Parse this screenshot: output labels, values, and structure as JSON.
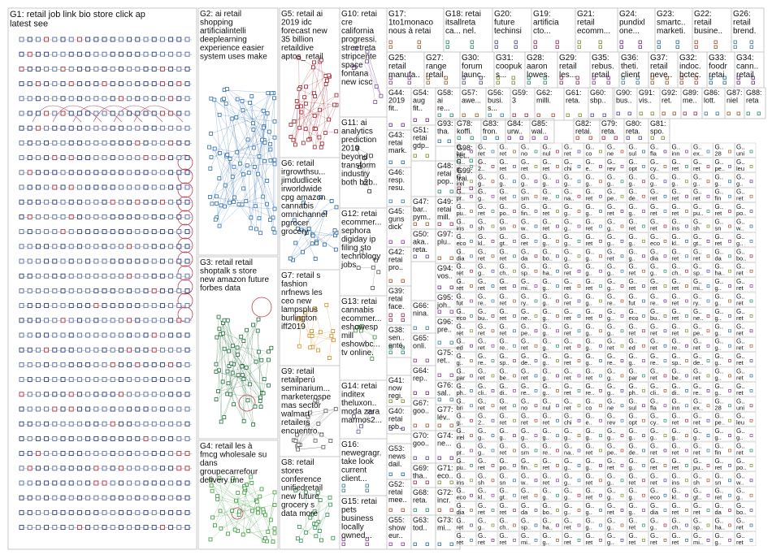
{
  "groups": [
    {
      "id": "G1",
      "lines": [
        "G1: retail job link bio store click apply hiring",
        "latest see"
      ]
    },
    {
      "id": "G2",
      "lines": [
        "G2: ai retail",
        "shopping",
        "artificialintelligence",
        "deeplearning",
        "experience easier",
        "system uses make"
      ]
    },
    {
      "id": "G3",
      "lines": [
        "G3: retail retailwire",
        "shoptalk s store",
        "new amazon future",
        "forbes data"
      ]
    },
    {
      "id": "G4",
      "lines": [
        "G4: retail les à",
        "fmcg wholesale sur",
        "dans",
        "groupecarrefour",
        "delivery une"
      ]
    },
    {
      "id": "G5",
      "lines": [
        "G5: retail ai",
        "2019 idc",
        "forecast new",
        "35 billion",
        "retaildive",
        "aptos_retail"
      ]
    },
    {
      "id": "G6",
      "lines": [
        "G6: retail",
        "irgrowthsu...",
        "jimdudlicek",
        "irworldwide",
        "cpg amazon",
        "cannabis",
        "omnichannel",
        "pgrocer",
        "grocery"
      ]
    },
    {
      "id": "G7",
      "lines": [
        "G7: retail s",
        "fashion",
        "nrfnews les",
        "ceo new",
        "lampsplus",
        "burlington",
        "iff2019"
      ]
    },
    {
      "id": "G8",
      "lines": [
        "G8: retail",
        "stores",
        "conference",
        "unifiedretaili...",
        "new future",
        "grocery s",
        "data more"
      ]
    },
    {
      "id": "G9",
      "lines": [
        "G9: retail",
        "retailperú",
        "seminarium...",
        "marketerospe",
        "mas sector",
        "walmart",
        "retailers",
        "encuentro..."
      ]
    },
    {
      "id": "G10",
      "lines": [
        "G10: retail",
        "cre",
        "california",
        "progressi...",
        "streetretail",
        "stripcenter",
        "space",
        "fontana",
        "new icsc"
      ]
    },
    {
      "id": "G11",
      "lines": [
        "G11: ai",
        "analytics",
        "prediction",
        "2019",
        "beyond",
        "transform",
        "industry",
        "both b2b..."
      ]
    },
    {
      "id": "G12",
      "lines": [
        "G12: retail",
        "ecommer...",
        "sephora",
        "digiday ipo",
        "filing store",
        "technology",
        "jobs"
      ]
    },
    {
      "id": "G13",
      "lines": [
        "G13: retail",
        "cannabis",
        "ecommer...",
        "eshowesp",
        "mill",
        "eshowbc...",
        "tv online..."
      ]
    },
    {
      "id": "G14",
      "lines": [
        "G14: retail",
        "inditex",
        "theluxon...",
        "moda zara",
        "marmos2..."
      ]
    },
    {
      "id": "G15",
      "lines": [
        "G15: retail",
        "pets",
        "business",
        "locally",
        "owned..."
      ]
    },
    {
      "id": "G16",
      "lines": [
        "G16:",
        "newegragr...",
        "take look",
        "current",
        "client..."
      ]
    },
    {
      "id": "G17",
      "lines": [
        "G17:",
        "1to1monaco",
        "nous à retail..."
      ]
    },
    {
      "id": "G18",
      "lines": [
        "G18: retail",
        "itsallretail",
        "ca... nel..."
      ]
    },
    {
      "id": "G19",
      "lines": [
        "G19:",
        "artificial ai",
        "cto..."
      ]
    },
    {
      "id": "G20",
      "lines": [
        "G20:",
        "future",
        "techinsi..."
      ]
    },
    {
      "id": "G21",
      "lines": [
        "G21:",
        "retail",
        "ecomm..."
      ]
    },
    {
      "id": "G22",
      "lines": [
        "G22:",
        "retail",
        "busine..."
      ]
    },
    {
      "id": "G23",
      "lines": [
        "G23:",
        "smartc...",
        "marketi..."
      ]
    },
    {
      "id": "G24",
      "lines": [
        "G24:",
        "pundixl",
        "one..."
      ]
    },
    {
      "id": "G25",
      "lines": [
        "G25:",
        "retail",
        "manufa..."
      ]
    },
    {
      "id": "G26",
      "lines": [
        "G26:",
        "retail",
        "brend..."
      ]
    },
    {
      "id": "G27",
      "lines": [
        "G27:",
        "range",
        "retail..."
      ]
    },
    {
      "id": "G28",
      "lines": [
        "G28:",
        "aaron",
        "lowes..."
      ]
    },
    {
      "id": "G29",
      "lines": [
        "G29:",
        "retail",
        "les..."
      ]
    },
    {
      "id": "G30",
      "lines": [
        "G30:",
        "forum",
        "launc..."
      ]
    },
    {
      "id": "G31",
      "lines": [
        "G31:",
        "coopuka",
        "s..."
      ]
    },
    {
      "id": "G32",
      "lines": [
        "G32:",
        "indoc...",
        "bctec..."
      ]
    },
    {
      "id": "G33",
      "lines": [
        "G33:",
        "foodr...",
        "retail..."
      ]
    },
    {
      "id": "G34",
      "lines": [
        "G34:",
        "cann...",
        "retail..."
      ]
    },
    {
      "id": "G35",
      "lines": [
        "G35:",
        "rebus...",
        "retail..."
      ]
    },
    {
      "id": "G36",
      "lines": [
        "G36:",
        "theti...",
        "client..."
      ]
    },
    {
      "id": "G37",
      "lines": [
        "G37:",
        "retail",
        "neve..."
      ]
    },
    {
      "id": "G38",
      "lines": [
        "G38:",
        "sen...",
        "enté..."
      ]
    },
    {
      "id": "G39",
      "lines": [
        "G39:",
        "retail",
        "face..."
      ]
    },
    {
      "id": "G40",
      "lines": [
        "G40:",
        "retail",
        "rob..."
      ]
    },
    {
      "id": "G41",
      "lines": [
        "G41:",
        "now",
        "regi..."
      ]
    },
    {
      "id": "G42",
      "lines": [
        "G42:",
        "retail",
        "pro..."
      ]
    },
    {
      "id": "G43",
      "lines": [
        "G43:",
        "retail",
        "mark..."
      ]
    },
    {
      "id": "G44",
      "lines": [
        "G44:",
        "2019",
        "fit..."
      ]
    },
    {
      "id": "G45",
      "lines": [
        "G45:",
        "guns",
        "dick'..."
      ]
    },
    {
      "id": "G46",
      "lines": [
        "G46:",
        "resp...",
        "resu..."
      ]
    },
    {
      "id": "G47",
      "lines": [
        "G47:",
        "bar...",
        "pym..."
      ]
    },
    {
      "id": "G48",
      "lines": [
        "G48:",
        "retail",
        "pop..."
      ]
    },
    {
      "id": "G49",
      "lines": [
        "G49:",
        "retail",
        "mill..."
      ]
    },
    {
      "id": "G50",
      "lines": [
        "G50:",
        "aka...",
        "reta..."
      ]
    },
    {
      "id": "G51",
      "lines": [
        "G51:",
        "retail",
        "gdp..."
      ]
    },
    {
      "id": "G52",
      "lines": [
        "G52:",
        "retail",
        "mee..."
      ]
    },
    {
      "id": "G53",
      "lines": [
        "G53:",
        "news",
        "dail..."
      ]
    },
    {
      "id": "G54",
      "lines": [
        "G54:",
        "aug",
        "fit..."
      ]
    },
    {
      "id": "G55",
      "lines": [
        "G55:",
        "show",
        "eur..."
      ]
    },
    {
      "id": "G56",
      "lines": [
        "G56:",
        "busi...",
        "s..."
      ]
    },
    {
      "id": "G57",
      "lines": [
        "G57:",
        "awe..."
      ]
    },
    {
      "id": "G58",
      "lines": [
        "G58:",
        "ai",
        "re..."
      ]
    },
    {
      "id": "G59",
      "lines": [
        "G59:",
        "3"
      ]
    },
    {
      "id": "G60",
      "lines": [
        "G60:",
        "sbp..."
      ]
    },
    {
      "id": "G61",
      "lines": [
        "G61:",
        "reta..."
      ]
    },
    {
      "id": "G62",
      "lines": [
        "G62:",
        "milli..."
      ]
    },
    {
      "id": "G63",
      "lines": [
        "G63:",
        "tod..."
      ]
    },
    {
      "id": "G64",
      "lines": [
        "G64:",
        "rep..."
      ]
    },
    {
      "id": "G65",
      "lines": [
        "G65:",
        "onli..."
      ]
    },
    {
      "id": "G66",
      "lines": [
        "G66:",
        "nina..."
      ]
    },
    {
      "id": "G67",
      "lines": [
        "G67:",
        "goo..."
      ]
    },
    {
      "id": "G68",
      "lines": [
        "G68:",
        "reta..."
      ]
    },
    {
      "id": "G69",
      "lines": [
        "G69:",
        "tha..."
      ]
    },
    {
      "id": "G70",
      "lines": [
        "G70:",
        "goo..."
      ]
    },
    {
      "id": "G71",
      "lines": [
        "G71:",
        "eco..."
      ]
    },
    {
      "id": "G72",
      "lines": [
        "G72:",
        "incr..."
      ]
    },
    {
      "id": "G73",
      "lines": [
        "G73:",
        "mi..."
      ]
    },
    {
      "id": "G74",
      "lines": [
        "G74:",
        "ne..."
      ]
    },
    {
      "id": "G75",
      "lines": [
        "G75:",
        "ret..."
      ]
    },
    {
      "id": "G76",
      "lines": [
        "G76:",
        "sal..."
      ]
    },
    {
      "id": "G77",
      "lines": [
        "G77:",
        "lév..."
      ]
    },
    {
      "id": "G78",
      "lines": [
        "G78:",
        "koffi..."
      ]
    },
    {
      "id": "G79",
      "lines": [
        "G79:",
        "reta..."
      ]
    },
    {
      "id": "G80",
      "lines": [
        "G80:",
        "reta..."
      ]
    },
    {
      "id": "G81",
      "lines": [
        "G81:",
        "spo..."
      ]
    },
    {
      "id": "G82",
      "lines": [
        "G82:",
        "retai..."
      ]
    },
    {
      "id": "G83",
      "lines": [
        "G83:",
        "fron..."
      ]
    },
    {
      "id": "G84",
      "lines": [
        "G84:",
        "urw..."
      ]
    },
    {
      "id": "G85",
      "lines": [
        "G85:",
        "wal..."
      ]
    },
    {
      "id": "G86",
      "lines": [
        "G86:",
        "lott..."
      ]
    },
    {
      "id": "G87",
      "lines": [
        "G87:",
        "niel..."
      ]
    },
    {
      "id": "G88",
      "lines": [
        "G88:",
        "reta..."
      ]
    },
    {
      "id": "G89",
      "lines": [
        "G89:",
        "me..."
      ]
    },
    {
      "id": "G90",
      "lines": [
        "G90:",
        "bus..."
      ]
    },
    {
      "id": "G91",
      "lines": [
        "G91:",
        "vis..."
      ]
    },
    {
      "id": "G92",
      "lines": [
        "G92:",
        "ret..."
      ]
    },
    {
      "id": "G93",
      "lines": [
        "G93:",
        "tha..."
      ]
    },
    {
      "id": "G94",
      "lines": [
        "G94:",
        "vos..."
      ]
    },
    {
      "id": "G95",
      "lines": [
        "G95:",
        "joh..."
      ]
    },
    {
      "id": "G96",
      "lines": [
        "G96:",
        "pre..."
      ]
    },
    {
      "id": "G97",
      "lines": [
        "G97:",
        "plu..."
      ]
    },
    {
      "id": "G98",
      "lines": [
        "G98:",
        "ret..."
      ]
    },
    {
      "id": "G99",
      "lines": [
        "G99:",
        "trai..."
      ]
    }
  ],
  "small_labels": {
    "g1_prefix": "G1",
    "g_prefix": "G..",
    "row_words": [
      [
        "bri",
        "ret",
        "ret",
        "no",
        "nul",
        "ret",
        "co",
        "ne",
        "sul",
        "fla",
        "inn",
        "ex..",
        "28",
        "uni",
        "su"
      ],
      [
        "g..",
        "2..",
        "ret",
        "ret",
        "ret",
        "chi",
        "e..",
        "rev",
        "opt",
        "cy..",
        "ret",
        "ret",
        "pe..",
        "leu",
        "ret",
        "plus"
      ],
      [
        "irel",
        "g..",
        "g..",
        "g..",
        "g..",
        "g..",
        "g..",
        "g..",
        "g..",
        "g..",
        "g..",
        "g..",
        "g..",
        "g..",
        "g.."
      ],
      [
        "pr..",
        "g..",
        "ret",
        "sm",
        "re..",
        "na..",
        "ret",
        "pe..",
        "de..",
        "ret",
        "ret",
        "ret",
        "fin",
        "ret"
      ],
      [
        "pu..",
        "ret",
        "po..",
        "fin..",
        "ret",
        "g..",
        "g..",
        "ret",
        "g..",
        "ret",
        "ret"
      ],
      [
        "ins",
        "sh",
        "sn",
        "w..",
        "ret",
        "g..",
        "ret",
        "g..",
        "ret",
        "ret"
      ],
      [
        "eco",
        "kl..",
        "gt..",
        "ret",
        "g..",
        "g..",
        "ret",
        "g..",
        "g.."
      ],
      [
        "dia",
        "ret",
        "ret",
        "da",
        "bo..",
        "g..",
        "g..",
        "ret",
        "g.."
      ],
      [
        "ret",
        "g..",
        "ch..",
        "sp..",
        "ha..",
        "ret",
        "g..",
        "g.."
      ],
      [
        "ret",
        "ret",
        "ret",
        "mi..",
        "g..",
        "ret",
        "ret",
        "g.."
      ],
      [
        "fut",
        "re..",
        "ret",
        "ry..",
        "g..",
        "ret",
        "g..",
        "re.."
      ],
      [
        "eco",
        "bu..",
        "ret",
        "ne..",
        "g..",
        "ret",
        "ret",
        "g.."
      ],
      [
        "ret",
        "ret",
        "ret",
        "pe..",
        "g..",
        "ret",
        "g..",
        "g.."
      ],
      [
        "ed",
        "ret",
        "re..",
        "ret",
        "g..",
        "ret",
        "g..",
        "ret"
      ],
      [
        "g..",
        "re..",
        "sp..",
        "de..",
        "g..",
        "ret",
        "g..",
        "re.."
      ],
      [
        "par",
        "ret",
        "be..",
        "ret",
        "g..",
        "ret",
        "ret",
        "g.."
      ],
      [
        "ph..",
        "cli..",
        "di..",
        "re..",
        "g..",
        "ret",
        "re..",
        "g.."
      ]
    ]
  }
}
